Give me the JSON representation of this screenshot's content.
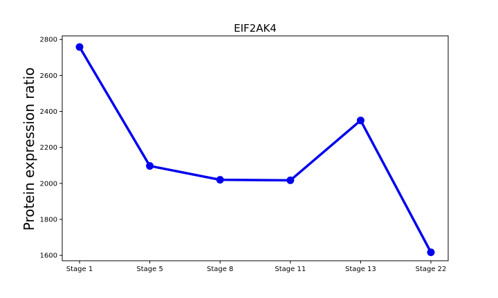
{
  "chart_data": {
    "type": "line",
    "title": "EIF2AK4",
    "xlabel": "",
    "ylabel": "Protein expression ratio",
    "categories": [
      "Stage 1",
      "Stage 5",
      "Stage 8",
      "Stage 11",
      "Stage 13",
      "Stage 22"
    ],
    "series": [
      {
        "values": [
          2758,
          2097,
          2020,
          2017,
          2350,
          1617
        ],
        "color": "#0000ee"
      }
    ],
    "ylim": [
      1570,
      2820
    ],
    "yticks": [
      1600,
      1800,
      2000,
      2200,
      2400,
      2600,
      2800
    ],
    "grid": false,
    "legend": "none"
  }
}
